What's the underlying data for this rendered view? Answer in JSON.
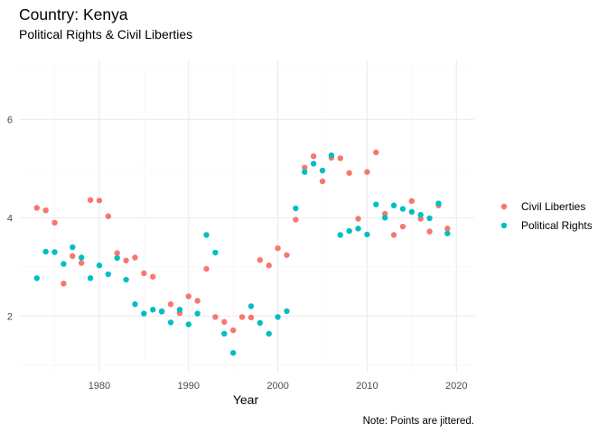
{
  "chart_data": {
    "type": "scatter",
    "title": "Country: Kenya",
    "subtitle": "Political Rights & Civil Liberties",
    "xlabel": "Year",
    "ylabel": "",
    "caption": "Note: Points are jittered.",
    "xlim": [
      1971,
      2022
    ],
    "ylim": [
      0.85,
      7.2
    ],
    "x_ticks": [
      1980,
      1990,
      2000,
      2010,
      2020
    ],
    "y_ticks": [
      2,
      4,
      6
    ],
    "grid": true,
    "legend_position": "right",
    "series": [
      {
        "name": "Civil Liberties",
        "color": "#F8766D",
        "points": [
          [
            1973,
            4.2
          ],
          [
            1974,
            4.15
          ],
          [
            1975,
            3.9
          ],
          [
            1976,
            2.66
          ],
          [
            1977,
            3.22
          ],
          [
            1978,
            3.08
          ],
          [
            1979,
            4.36
          ],
          [
            1980,
            4.35
          ],
          [
            1981,
            4.03
          ],
          [
            1982,
            3.28
          ],
          [
            1983,
            3.13
          ],
          [
            1984,
            3.19
          ],
          [
            1985,
            2.87
          ],
          [
            1986,
            2.8
          ],
          [
            1987,
            2.1
          ],
          [
            1988,
            2.24
          ],
          [
            1989,
            2.06
          ],
          [
            1990,
            2.4
          ],
          [
            1991,
            2.31
          ],
          [
            1992,
            2.96
          ],
          [
            1993,
            1.98
          ],
          [
            1994,
            1.88
          ],
          [
            1995,
            1.71
          ],
          [
            1996,
            1.98
          ],
          [
            1997,
            1.97
          ],
          [
            1998,
            3.14
          ],
          [
            1999,
            3.03
          ],
          [
            2000,
            3.38
          ],
          [
            2001,
            3.24
          ],
          [
            2002,
            3.96
          ],
          [
            2003,
            5.02
          ],
          [
            2004,
            5.25
          ],
          [
            2005,
            4.74
          ],
          [
            2006,
            5.22
          ],
          [
            2007,
            5.21
          ],
          [
            2008,
            4.91
          ],
          [
            2009,
            3.98
          ],
          [
            2010,
            4.93
          ],
          [
            2011,
            5.33
          ],
          [
            2012,
            4.08
          ],
          [
            2013,
            3.65
          ],
          [
            2014,
            3.82
          ],
          [
            2015,
            4.34
          ],
          [
            2016,
            3.98
          ],
          [
            2017,
            3.72
          ],
          [
            2018,
            4.25
          ],
          [
            2019,
            3.78
          ]
        ]
      },
      {
        "name": "Political Rights",
        "color": "#00BFC4",
        "points": [
          [
            1973,
            2.77
          ],
          [
            1974,
            3.31
          ],
          [
            1975,
            3.3
          ],
          [
            1976,
            3.06
          ],
          [
            1977,
            3.4
          ],
          [
            1978,
            3.19
          ],
          [
            1979,
            2.77
          ],
          [
            1980,
            3.03
          ],
          [
            1981,
            2.85
          ],
          [
            1982,
            3.18
          ],
          [
            1983,
            2.74
          ],
          [
            1984,
            2.24
          ],
          [
            1985,
            2.05
          ],
          [
            1986,
            2.13
          ],
          [
            1987,
            2.09
          ],
          [
            1988,
            1.87
          ],
          [
            1989,
            2.13
          ],
          [
            1990,
            1.83
          ],
          [
            1991,
            2.05
          ],
          [
            1992,
            3.65
          ],
          [
            1993,
            3.29
          ],
          [
            1994,
            1.64
          ],
          [
            1995,
            1.25
          ],
          [
            1997,
            2.2
          ],
          [
            1998,
            1.86
          ],
          [
            1999,
            1.64
          ],
          [
            2000,
            1.98
          ],
          [
            2001,
            2.1
          ],
          [
            2002,
            4.19
          ],
          [
            2003,
            4.93
          ],
          [
            2004,
            5.1
          ],
          [
            2005,
            4.96
          ],
          [
            2006,
            5.27
          ],
          [
            2007,
            3.65
          ],
          [
            2008,
            3.73
          ],
          [
            2009,
            3.78
          ],
          [
            2010,
            3.66
          ],
          [
            2011,
            4.27
          ],
          [
            2012,
            4.0
          ],
          [
            2013,
            4.25
          ],
          [
            2014,
            4.18
          ],
          [
            2015,
            4.12
          ],
          [
            2016,
            4.06
          ],
          [
            2017,
            3.99
          ],
          [
            2018,
            4.29
          ],
          [
            2019,
            3.68
          ]
        ]
      }
    ]
  }
}
